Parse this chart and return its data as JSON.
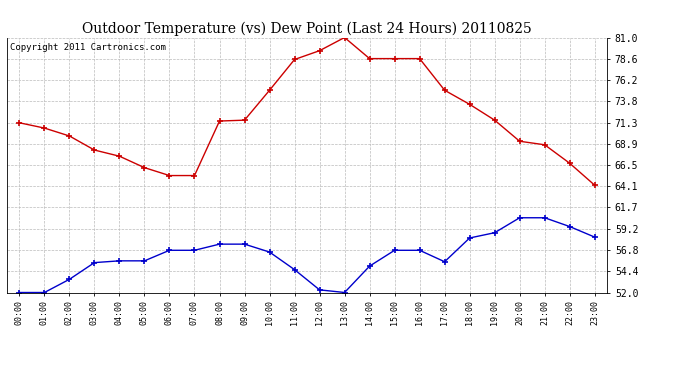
{
  "title": "Outdoor Temperature (vs) Dew Point (Last 24 Hours) 20110825",
  "copyright": "Copyright 2011 Cartronics.com",
  "x_labels": [
    "00:00",
    "01:00",
    "02:00",
    "03:00",
    "04:00",
    "05:00",
    "06:00",
    "07:00",
    "08:00",
    "09:00",
    "10:00",
    "11:00",
    "12:00",
    "13:00",
    "14:00",
    "15:00",
    "16:00",
    "17:00",
    "18:00",
    "19:00",
    "20:00",
    "21:00",
    "22:00",
    "23:00"
  ],
  "temp_values": [
    71.3,
    70.7,
    69.8,
    68.2,
    67.5,
    66.2,
    65.3,
    65.3,
    71.5,
    71.6,
    75.0,
    78.5,
    79.5,
    81.0,
    78.6,
    78.6,
    78.6,
    75.0,
    73.4,
    71.6,
    69.2,
    68.8,
    66.7,
    64.2
  ],
  "dew_values": [
    52.0,
    52.0,
    53.5,
    55.4,
    55.6,
    55.6,
    56.8,
    56.8,
    57.5,
    57.5,
    56.6,
    54.6,
    52.3,
    52.0,
    55.0,
    56.8,
    56.8,
    55.5,
    58.2,
    58.8,
    60.5,
    60.5,
    59.5,
    58.3
  ],
  "y_min": 52.0,
  "y_max": 81.0,
  "y_ticks": [
    52.0,
    54.4,
    56.8,
    59.2,
    61.7,
    64.1,
    66.5,
    68.9,
    71.3,
    73.8,
    76.2,
    78.6,
    81.0
  ],
  "temp_color": "#cc0000",
  "dew_color": "#0000cc",
  "grid_color": "#bbbbbb",
  "bg_color": "#ffffff",
  "plot_bg_color": "#ffffff",
  "title_fontsize": 10,
  "copyright_fontsize": 6.5,
  "tick_fontsize": 7,
  "x_tick_fontsize": 6
}
